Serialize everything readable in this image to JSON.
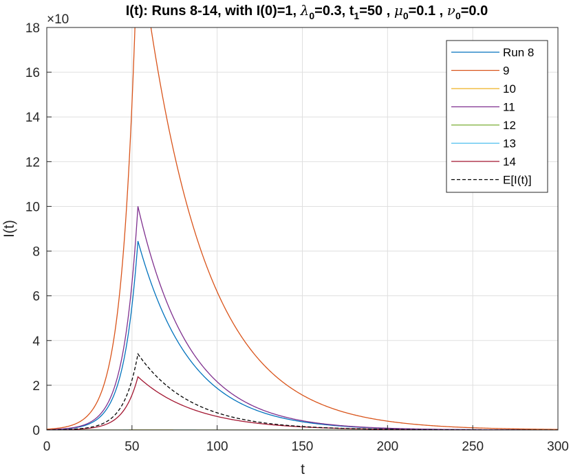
{
  "chart_data": {
    "type": "line",
    "title": {
      "a": "I(t): Runs 8-14,  with I(0)=1, ",
      "b": "λ",
      "b_sub": "0",
      "c": "=0.3,  t",
      "c_sub": "1",
      "d": "=50 , ",
      "e": "μ",
      "e_sub": "0",
      "f": "=0.1 , ",
      "g": "ν",
      "g_sub": "0",
      "h": "=0.0"
    },
    "xlabel": "t",
    "ylabel": "I(t)",
    "y_exponent_label": "×10",
    "xlim": [
      0,
      300
    ],
    "ylim": [
      0,
      18
    ],
    "xticks": [
      "0",
      "50",
      "100",
      "150",
      "200",
      "250",
      "300"
    ],
    "yticks": [
      "0",
      "2",
      "4",
      "6",
      "8",
      "10",
      "12",
      "14",
      "16",
      "18"
    ],
    "grid": true,
    "legend_position": "top-right",
    "series": [
      {
        "name": "Run 8",
        "color": "#0072BD",
        "dash": false,
        "peak": 8.45,
        "grow": 0.12,
        "decay": 0.0325
      },
      {
        "name": "9",
        "color": "#D95319",
        "dash": false,
        "peak": 22.2,
        "grow": 0.12,
        "decay": 0.0275
      },
      {
        "name": "10",
        "color": "#EDB120",
        "dash": false,
        "peak": 0.002,
        "grow": 0.12,
        "decay": 0.03
      },
      {
        "name": "11",
        "color": "#7E2F8E",
        "dash": false,
        "peak": 10.0,
        "grow": 0.12,
        "decay": 0.033
      },
      {
        "name": "12",
        "color": "#77AC30",
        "dash": false,
        "peak": 0.002,
        "grow": 0.12,
        "decay": 0.03
      },
      {
        "name": "13",
        "color": "#4DBEEE",
        "dash": false,
        "peak": 0.003,
        "grow": 0.12,
        "decay": 0.03
      },
      {
        "name": "14",
        "color": "#A2142F",
        "dash": false,
        "peak": 2.38,
        "grow": 0.12,
        "decay": 0.0295
      },
      {
        "name": "E[I(t)]",
        "color": "#000000",
        "dash": true,
        "peak": 3.4,
        "grow": 0.12,
        "decay": 0.032
      }
    ],
    "peak_t": 53.5
  }
}
